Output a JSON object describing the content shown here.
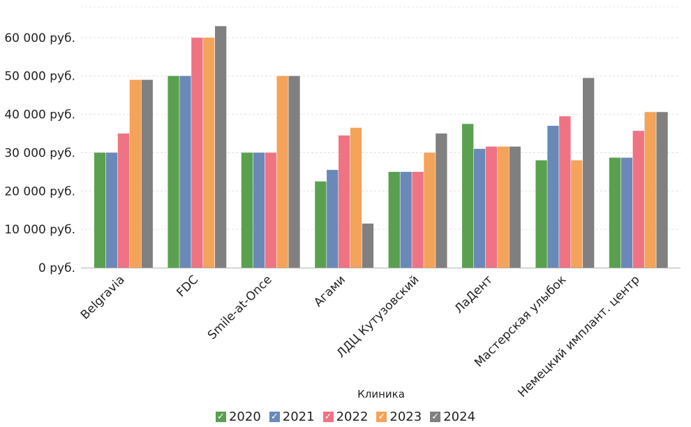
{
  "chart_data": {
    "type": "bar",
    "categories": [
      "Belgravia",
      "FDC",
      "Smile-at-Once",
      "Агами",
      "ЛДЦ Кутузовский",
      "ЛаДент",
      "Мастерская улыбок",
      "Немецкий имплант. центр"
    ],
    "series": [
      {
        "name": "2020",
        "color": "#59a14f",
        "values": [
          30000,
          50000,
          30000,
          22500,
          25000,
          37500,
          28000,
          28700
        ]
      },
      {
        "name": "2021",
        "color": "#6a89b8",
        "values": [
          30000,
          50000,
          30000,
          25500,
          25000,
          31000,
          37000,
          28700
        ]
      },
      {
        "name": "2022",
        "color": "#ef7383",
        "values": [
          35000,
          60000,
          30000,
          34500,
          25000,
          31600,
          39500,
          35700
        ]
      },
      {
        "name": "2023",
        "color": "#f4a35a",
        "values": [
          49000,
          60000,
          50000,
          36500,
          30000,
          31600,
          28000,
          40600
        ]
      },
      {
        "name": "2024",
        "color": "#808080",
        "values": [
          49000,
          63000,
          50000,
          11500,
          35000,
          31600,
          49500,
          40600
        ]
      }
    ],
    "y_ticks": [
      0,
      10000,
      20000,
      30000,
      40000,
      50000,
      60000
    ],
    "y_tick_labels": [
      "0 руб.",
      "10 000 руб.",
      "20 000 руб.",
      "30 000 руб.",
      "40 000 руб.",
      "50 000 руб.",
      "60 000 руб."
    ],
    "ylim": [
      0,
      68000
    ],
    "xlabel": "Клиника",
    "ylabel": "",
    "title": "",
    "grid": true,
    "legend_position": "bottom",
    "legend_check": "✓"
  }
}
